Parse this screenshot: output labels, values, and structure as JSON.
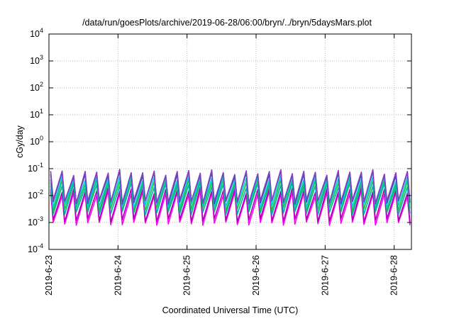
{
  "chart_data": {
    "type": "line",
    "title": "/data/run/goesPlots/archive/2019-06-28/06:00/bryn/../bryn/5daysMars.plot",
    "xlabel": "Coordinated Universal Time (UTC)",
    "ylabel": "cGy/day",
    "x_tick_labels": [
      "2019-6-23",
      "2019-6-24",
      "2019-6-25",
      "2019-6-26",
      "2019-6-27",
      "2019-6-28"
    ],
    "x_range": [
      "2019-06-23T00:00",
      "2019-06-28T06:00"
    ],
    "y_scale": "log",
    "ylim": [
      0.0001,
      10000
    ],
    "y_ticks": [
      0.0001,
      0.001,
      0.01,
      0.1,
      1,
      10,
      100,
      1000,
      10000
    ],
    "grid": true,
    "legend": "none",
    "cycles_per_day": 6,
    "series": [
      {
        "color": "#ff00ff",
        "peak": 0.012,
        "trough": 0.0009
      },
      {
        "color": "#b000b0",
        "peak": 0.016,
        "trough": 0.0012
      },
      {
        "color": "#00b0b0",
        "peak": 0.025,
        "trough": 0.0022
      },
      {
        "color": "#20c040",
        "peak": 0.035,
        "trough": 0.003
      },
      {
        "color": "#00d0d0",
        "peak": 0.045,
        "trough": 0.004
      },
      {
        "color": "#3050c0",
        "peak": 0.065,
        "trough": 0.0055
      },
      {
        "color": "#8040c0",
        "peak": 0.075,
        "trough": 0.006
      }
    ]
  }
}
